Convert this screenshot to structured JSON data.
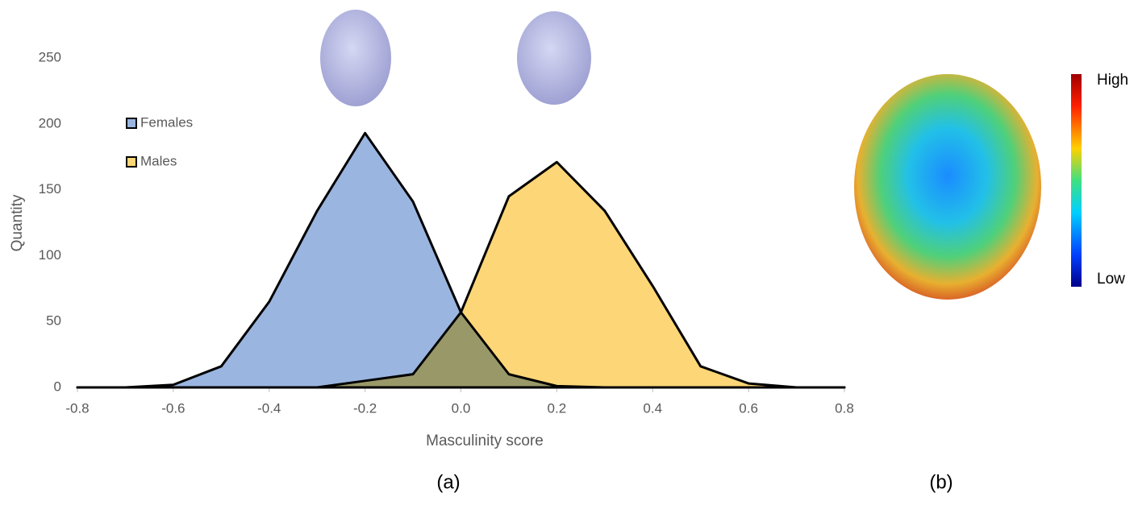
{
  "chart_data": {
    "type": "area",
    "x": [
      -0.8,
      -0.7,
      -0.6,
      -0.5,
      -0.4,
      -0.3,
      -0.2,
      -0.1,
      0,
      0.1,
      0.2,
      0.3,
      0.4,
      0.5,
      0.6,
      0.7,
      0.8
    ],
    "series": [
      {
        "name": "Females",
        "color": "#9ab5e0",
        "values": [
          0,
          0,
          2,
          16,
          65,
          134,
          193,
          141,
          57,
          10,
          1,
          0,
          0,
          0,
          0,
          0,
          0
        ]
      },
      {
        "name": "Males",
        "color": "#fdd677",
        "values": [
          0,
          0,
          0,
          0,
          0,
          0,
          5,
          10,
          57,
          145,
          171,
          134,
          77,
          16,
          3,
          0,
          0
        ]
      }
    ],
    "xlim": [
      -0.8,
      0.8
    ],
    "xticks": [
      -0.8,
      -0.6,
      -0.4,
      -0.2,
      {
        "value": 0,
        "label": "0.0"
      },
      0.2,
      0.4,
      0.6,
      0.8
    ],
    "ylim": [
      0,
      250
    ],
    "yticks": [
      0,
      50,
      100,
      150,
      200,
      250
    ],
    "xlabel": "Masculinity score",
    "ylabel": "Quantity",
    "panel_labels": [
      "(a)",
      "(b)"
    ],
    "colorbar_labels": [
      "High",
      "Low"
    ]
  }
}
